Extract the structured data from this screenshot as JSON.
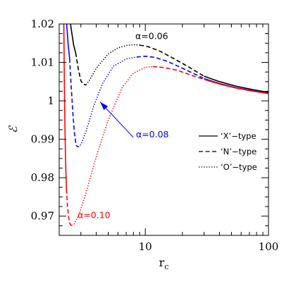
{
  "chart_data": {
    "type": "line",
    "xlabel": "r",
    "xlabel_sub": "c",
    "ylabel": "ℰ",
    "xscale": "log",
    "xlim": [
      2.0,
      100
    ],
    "ylim": [
      0.965,
      1.02
    ],
    "xticks": [
      10,
      100
    ],
    "xtick_labels": [
      "10",
      "100"
    ],
    "yticks": [
      0.97,
      0.98,
      0.99,
      1.0,
      1.01,
      1.02
    ],
    "ytick_labels": [
      "0.97",
      "0.98",
      "0.99",
      "1",
      "1.01",
      "1.02"
    ],
    "legend": [
      {
        "label": "‘X’−type",
        "dash": "solid"
      },
      {
        "label": "‘N’−type",
        "dash": "dashed"
      },
      {
        "label": "‘O’−type",
        "dash": "dotted"
      }
    ],
    "series": [
      {
        "name": "α=0.06",
        "color": "#000000",
        "segments": [
          {
            "type": "X",
            "x": [
              2.47,
              2.55,
              2.62,
              2.72
            ],
            "y": [
              1.02,
              1.017,
              1.0145,
              1.0125
            ]
          },
          {
            "type": "N",
            "x": [
              2.72,
              2.85,
              3.0,
              3.15,
              3.3
            ],
            "y": [
              1.0125,
              1.0085,
              1.0052,
              1.0042,
              1.0042
            ]
          },
          {
            "type": "O",
            "x": [
              3.3,
              3.5,
              4.0,
              5.0,
              6.0,
              7.0,
              8.0,
              9.0
            ],
            "y": [
              1.0042,
              1.0052,
              1.0085,
              1.0122,
              1.0138,
              1.0144,
              1.0146,
              1.0145
            ]
          },
          {
            "type": "N",
            "x": [
              9.0,
              10.5,
              13.0,
              17.0,
              22.0,
              30.0
            ],
            "y": [
              1.0145,
              1.0141,
              1.013,
              1.011,
              1.009,
              1.0064
            ]
          },
          {
            "type": "X",
            "x": [
              30.0,
              40.0,
              55.0,
              75.0,
              100.0
            ],
            "y": [
              1.0064,
              1.005,
              1.0038,
              1.0029,
              1.0022
            ]
          }
        ]
      },
      {
        "name": "α=0.08",
        "color": "#0000ff",
        "segments": [
          {
            "type": "X",
            "x": [
              2.3,
              2.36,
              2.43
            ],
            "y": [
              1.02,
              1.015,
              1.011
            ]
          },
          {
            "type": "N",
            "x": [
              2.43,
              2.5,
              2.58,
              2.66,
              2.75,
              2.85
            ],
            "y": [
              1.011,
              1.004,
              0.997,
              0.9915,
              0.9884,
              0.988
            ]
          },
          {
            "type": "O",
            "x": [
              2.85,
              3.0,
              3.3,
              3.8,
              4.5,
              5.5,
              7.0,
              8.5
            ],
            "y": [
              0.988,
              0.9886,
              0.992,
              0.9985,
              1.0045,
              1.009,
              1.0109,
              1.0114
            ]
          },
          {
            "type": "N",
            "x": [
              8.5,
              10.0,
              12.0,
              15.0,
              20.0,
              30.0
            ],
            "y": [
              1.0114,
              1.0116,
              1.0113,
              1.0103,
              1.0085,
              1.0058
            ]
          },
          {
            "type": "X",
            "x": [
              30.0,
              40.0,
              55.0,
              75.0,
              100.0
            ],
            "y": [
              1.0058,
              1.0045,
              1.0034,
              1.0026,
              1.0019
            ]
          }
        ]
      },
      {
        "name": "α=0.10",
        "color": "#ff0000",
        "segments": [
          {
            "type": "X",
            "x": [
              2.18,
              2.21,
              2.25,
              2.29
            ],
            "y": [
              1.02,
              1.0,
              0.985,
              0.977
            ]
          },
          {
            "type": "N",
            "x": [
              2.29,
              2.33,
              2.38,
              2.43,
              2.48,
              2.52
            ],
            "y": [
              0.977,
              0.973,
              0.97,
              0.9683,
              0.9677,
              0.9676
            ]
          },
          {
            "type": "O",
            "x": [
              2.52,
              2.65,
              2.9,
              3.3,
              4.0,
              5.0,
              6.5,
              8.0,
              10.0,
              11.5
            ],
            "y": [
              0.9676,
              0.968,
              0.9705,
              0.976,
              0.9855,
              0.995,
              1.0035,
              1.0072,
              1.0087,
              1.0089
            ]
          },
          {
            "type": "N",
            "x": [
              11.5,
              14.0,
              18.0,
              24.0,
              32.0
            ],
            "y": [
              1.0089,
              1.0087,
              1.008,
              1.0066,
              1.0053
            ]
          },
          {
            "type": "X",
            "x": [
              32.0,
              42.0,
              55.0,
              75.0,
              100.0
            ],
            "y": [
              1.0053,
              1.0042,
              1.0033,
              1.0025,
              1.0019
            ]
          }
        ]
      }
    ],
    "annotations": [
      {
        "text": "α=0.06",
        "color": "#000000",
        "x": 8.3,
        "y": 1.0161
      },
      {
        "text": "α=0.08",
        "color": "#0000ff",
        "x": 8.4,
        "y": 0.9905
      },
      {
        "text": "α=0.10",
        "color": "#ff0000",
        "x": 2.82,
        "y": 0.9695
      }
    ],
    "arrow": {
      "color": "#0000ff",
      "x_from": 8.0,
      "y_from": 0.9905,
      "x_to": 4.3,
      "y_to": 0.9997
    }
  }
}
